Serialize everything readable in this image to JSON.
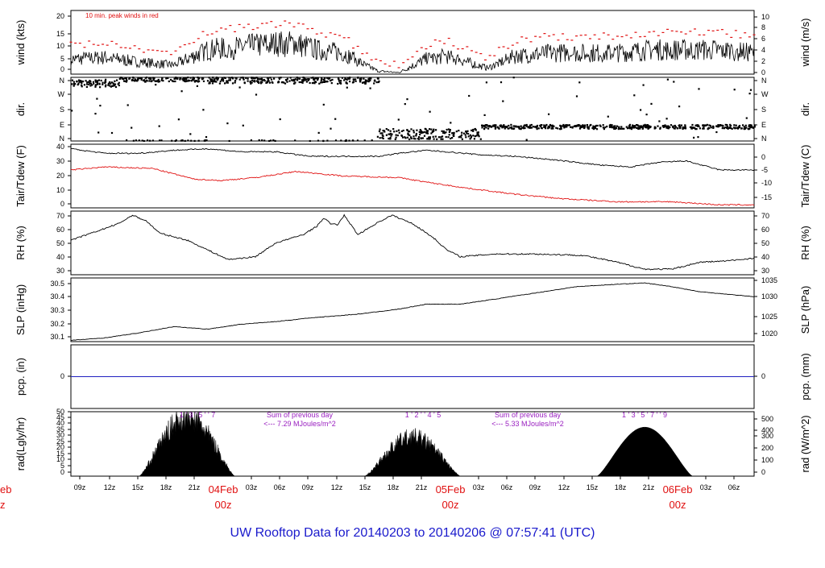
{
  "title": "UW Rooftop Data for 20140203  to  20140206 @ 07:57:41  (UTC)",
  "colors": {
    "title": "#1a1acc",
    "peak": "#e01010",
    "dew": "#e01010",
    "precip": "#2020c0",
    "solar_label": "#9a20c0",
    "date": "#e01010",
    "line": "#000000"
  },
  "time_axis": {
    "hour_ticks": [
      "09z",
      "12z",
      "15z",
      "18z",
      "21z",
      "03z",
      "06z",
      "09z",
      "12z",
      "15z",
      "18z",
      "21z",
      "03z",
      "06z",
      "09z",
      "12z",
      "15z",
      "18z",
      "21z",
      "03z",
      "06z"
    ],
    "date_labels": [
      {
        "date": "04Feb",
        "hour": "00z"
      },
      {
        "date": "05Feb",
        "hour": "00z"
      },
      {
        "date": "06Feb",
        "hour": "00z"
      }
    ],
    "left_clipped_date": {
      "date": "eb",
      "hour": "z"
    }
  },
  "chart_data": [
    {
      "type": "line",
      "name": "wind",
      "ylabel": "wind (kts)",
      "ylabel_right": "wind (m/s)",
      "ylim": [
        0,
        21
      ],
      "yticks": [
        "0",
        "5",
        "10",
        "15",
        "20"
      ],
      "yticks_right": [
        "0",
        "2",
        "4",
        "6",
        "8",
        "10"
      ],
      "annotation": "10 min. peak winds in red",
      "trend_knots": [
        [
          0,
          5
        ],
        [
          5,
          5.5
        ],
        [
          10,
          4
        ],
        [
          15,
          3
        ],
        [
          20,
          8
        ],
        [
          25,
          9
        ],
        [
          30,
          10
        ],
        [
          33,
          10
        ],
        [
          36,
          8
        ],
        [
          40,
          7
        ],
        [
          43,
          3
        ],
        [
          45,
          1
        ],
        [
          48,
          0.5
        ],
        [
          52,
          5
        ],
        [
          55,
          6
        ],
        [
          58,
          4
        ],
        [
          61,
          2
        ],
        [
          65,
          6
        ],
        [
          70,
          7
        ],
        [
          80,
          7
        ],
        [
          85,
          8
        ],
        [
          95,
          8
        ],
        [
          100,
          7
        ]
      ]
    },
    {
      "type": "scatter",
      "name": "dir",
      "ylabel": "dir.",
      "ylabel_right": "dir.",
      "ylim": [
        0,
        360
      ],
      "yticks": [
        "N",
        "E",
        "S",
        "W",
        "N"
      ],
      "yticks_right": [
        "N",
        "E",
        "S",
        "W",
        "N"
      ],
      "segments": [
        {
          "from": 0,
          "to": 7,
          "dir": 325,
          "spread": 20
        },
        {
          "from": 7,
          "to": 20,
          "dir": 350,
          "spread": 15
        },
        {
          "from": 20,
          "to": 45,
          "dir": 345,
          "spread": 20
        },
        {
          "from": 45,
          "to": 60,
          "dir": 40,
          "spread": 30
        },
        {
          "from": 60,
          "to": 100,
          "dir": 80,
          "spread": 12
        }
      ]
    },
    {
      "type": "line",
      "name": "temperature",
      "ylabel": "Tair/Tdew (F)",
      "ylabel_right": "Tair/Tdew (C)",
      "ylim": [
        -1,
        41
      ],
      "yticks": [
        "0",
        "10",
        "20",
        "30",
        "40"
      ],
      "yticks_right": [
        "-15",
        "-10",
        "-5",
        "0"
      ],
      "series": [
        {
          "name": "Tair",
          "knots": [
            [
              0,
              38
            ],
            [
              5,
              35
            ],
            [
              10,
              35
            ],
            [
              15,
              37
            ],
            [
              20,
              38
            ],
            [
              25,
              36
            ],
            [
              30,
              36
            ],
            [
              35,
              33
            ],
            [
              40,
              33
            ],
            [
              45,
              33
            ],
            [
              48,
              35
            ],
            [
              52,
              37
            ],
            [
              55,
              36
            ],
            [
              60,
              34
            ],
            [
              65,
              33
            ],
            [
              70,
              31
            ],
            [
              78,
              27
            ],
            [
              82,
              26
            ],
            [
              86,
              29
            ],
            [
              90,
              30
            ],
            [
              95,
              24
            ],
            [
              100,
              24
            ]
          ]
        },
        {
          "name": "Tdew",
          "knots": [
            [
              0,
              24
            ],
            [
              5,
              26
            ],
            [
              12,
              25
            ],
            [
              18,
              18
            ],
            [
              22,
              17
            ],
            [
              27,
              19
            ],
            [
              33,
              23
            ],
            [
              40,
              20
            ],
            [
              48,
              19
            ],
            [
              52,
              16
            ],
            [
              58,
              12
            ],
            [
              65,
              8
            ],
            [
              72,
              5
            ],
            [
              80,
              3
            ],
            [
              88,
              3
            ],
            [
              95,
              1
            ],
            [
              100,
              1
            ]
          ]
        }
      ]
    },
    {
      "type": "line",
      "name": "rh",
      "ylabel": "RH (%)",
      "ylabel_right": "RH (%)",
      "ylim": [
        27,
        73
      ],
      "yticks": [
        "30",
        "40",
        "50",
        "60",
        "70"
      ],
      "yticks_right": [
        "30",
        "40",
        "50",
        "60",
        "70"
      ],
      "knots": [
        [
          0,
          52
        ],
        [
          3,
          57
        ],
        [
          7,
          64
        ],
        [
          9,
          70
        ],
        [
          11,
          66
        ],
        [
          13,
          57
        ],
        [
          17,
          52
        ],
        [
          20,
          45
        ],
        [
          23,
          38
        ],
        [
          27,
          40
        ],
        [
          30,
          50
        ],
        [
          34,
          56
        ],
        [
          36,
          62
        ],
        [
          37,
          68
        ],
        [
          38,
          64
        ],
        [
          39,
          63
        ],
        [
          40,
          70
        ],
        [
          42,
          56
        ],
        [
          45,
          65
        ],
        [
          47,
          70
        ],
        [
          50,
          64
        ],
        [
          53,
          54
        ],
        [
          55,
          45
        ],
        [
          57,
          40
        ],
        [
          62,
          42
        ],
        [
          68,
          42
        ],
        [
          75,
          41
        ],
        [
          80,
          36
        ],
        [
          84,
          31
        ],
        [
          88,
          31
        ],
        [
          92,
          36
        ],
        [
          96,
          37
        ],
        [
          100,
          39
        ]
      ]
    },
    {
      "type": "line",
      "name": "slp",
      "ylabel": "SLP (inHg)",
      "ylabel_right": "SLP (hPa)",
      "ylim": [
        30.08,
        30.59
      ],
      "yticks": [
        "30.1",
        "30.2",
        "30.3",
        "30.4",
        "30.5"
      ],
      "yticks_right": [
        "1020",
        "1025",
        "1030",
        "1035"
      ],
      "knots": [
        [
          0,
          30.09
        ],
        [
          5,
          30.11
        ],
        [
          10,
          30.15
        ],
        [
          15,
          30.2
        ],
        [
          20,
          30.18
        ],
        [
          25,
          30.22
        ],
        [
          30,
          30.24
        ],
        [
          35,
          30.27
        ],
        [
          42,
          30.3
        ],
        [
          48,
          30.34
        ],
        [
          52,
          30.38
        ],
        [
          57,
          30.38
        ],
        [
          62,
          30.42
        ],
        [
          68,
          30.47
        ],
        [
          74,
          30.52
        ],
        [
          80,
          30.54
        ],
        [
          84,
          30.55
        ],
        [
          88,
          30.52
        ],
        [
          92,
          30.48
        ],
        [
          96,
          30.46
        ],
        [
          100,
          30.44
        ]
      ]
    },
    {
      "type": "line",
      "name": "precip",
      "ylabel": "pcp. (in)",
      "ylabel_right": "pcp. (mm)",
      "ylim": [
        -1,
        1
      ],
      "yticks": [
        "0"
      ],
      "yticks_right": [
        "0"
      ],
      "knots": [
        [
          0,
          0
        ],
        [
          100,
          0
        ]
      ]
    },
    {
      "type": "area",
      "name": "radiation",
      "ylabel": "rad(Lgly/hr)",
      "ylabel_right": "rad (W/m^2)",
      "ylim": [
        0,
        50
      ],
      "yticks": [
        "0",
        "5",
        "10",
        "15",
        "20",
        "25",
        "30",
        "35",
        "40",
        "45",
        "50"
      ],
      "yticks_right": [
        "0",
        "100",
        "200",
        "300",
        "400",
        "500"
      ],
      "days": [
        {
          "start": 10,
          "end": 24,
          "peak": 45,
          "noisy": true
        },
        {
          "start": 43,
          "end": 57,
          "peak": 30,
          "noisy": true
        },
        {
          "start": 77,
          "end": 91,
          "peak": 38,
          "noisy": false
        }
      ],
      "annotations": [
        {
          "line1": "Sum of previous day",
          "line2": "<--- 7.29 MJoules/m^2",
          "digits": "1 ' 3 ' 5 ' ' 7"
        },
        {
          "line1": "Sum of previous day",
          "line2": "<--- 5.33 MJoules/m^2",
          "digits": "1 ' 2 ' ' 4 ' 5"
        },
        {
          "digits": "1 ' 3 ' 5 ' 7 ' ' 9"
        }
      ]
    }
  ]
}
